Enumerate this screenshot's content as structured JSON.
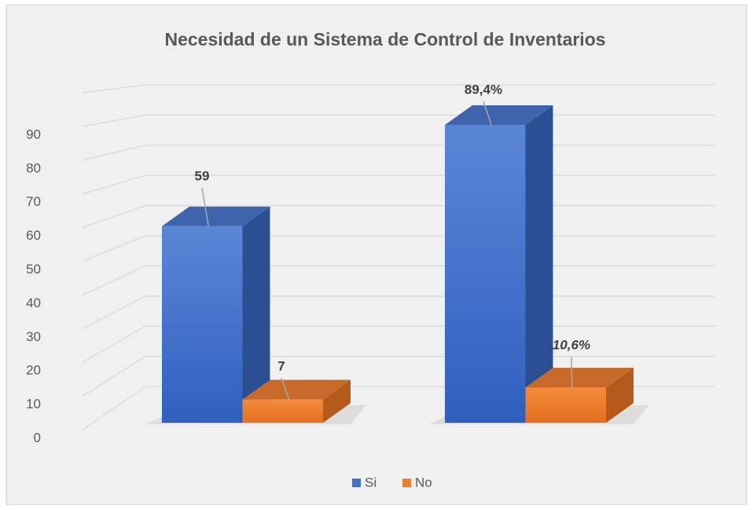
{
  "chart_data": {
    "type": "bar3d",
    "title": "Necesidad de un Sistema de Control de Inventarios",
    "categories": [
      null,
      null
    ],
    "series": [
      {
        "name": "Si",
        "color": "#4472c4",
        "values": [
          59,
          89.4
        ],
        "value_labels": [
          "59",
          "89,4%"
        ]
      },
      {
        "name": "No",
        "color": "#ed7d31",
        "values": [
          7,
          10.6
        ],
        "value_labels": [
          "7",
          "10,6%"
        ]
      }
    ],
    "ylim": [
      0,
      100
    ],
    "yticks": [
      0,
      10,
      20,
      30,
      40,
      50,
      60,
      70,
      80,
      90
    ],
    "grid": true,
    "legend": "bottom"
  }
}
